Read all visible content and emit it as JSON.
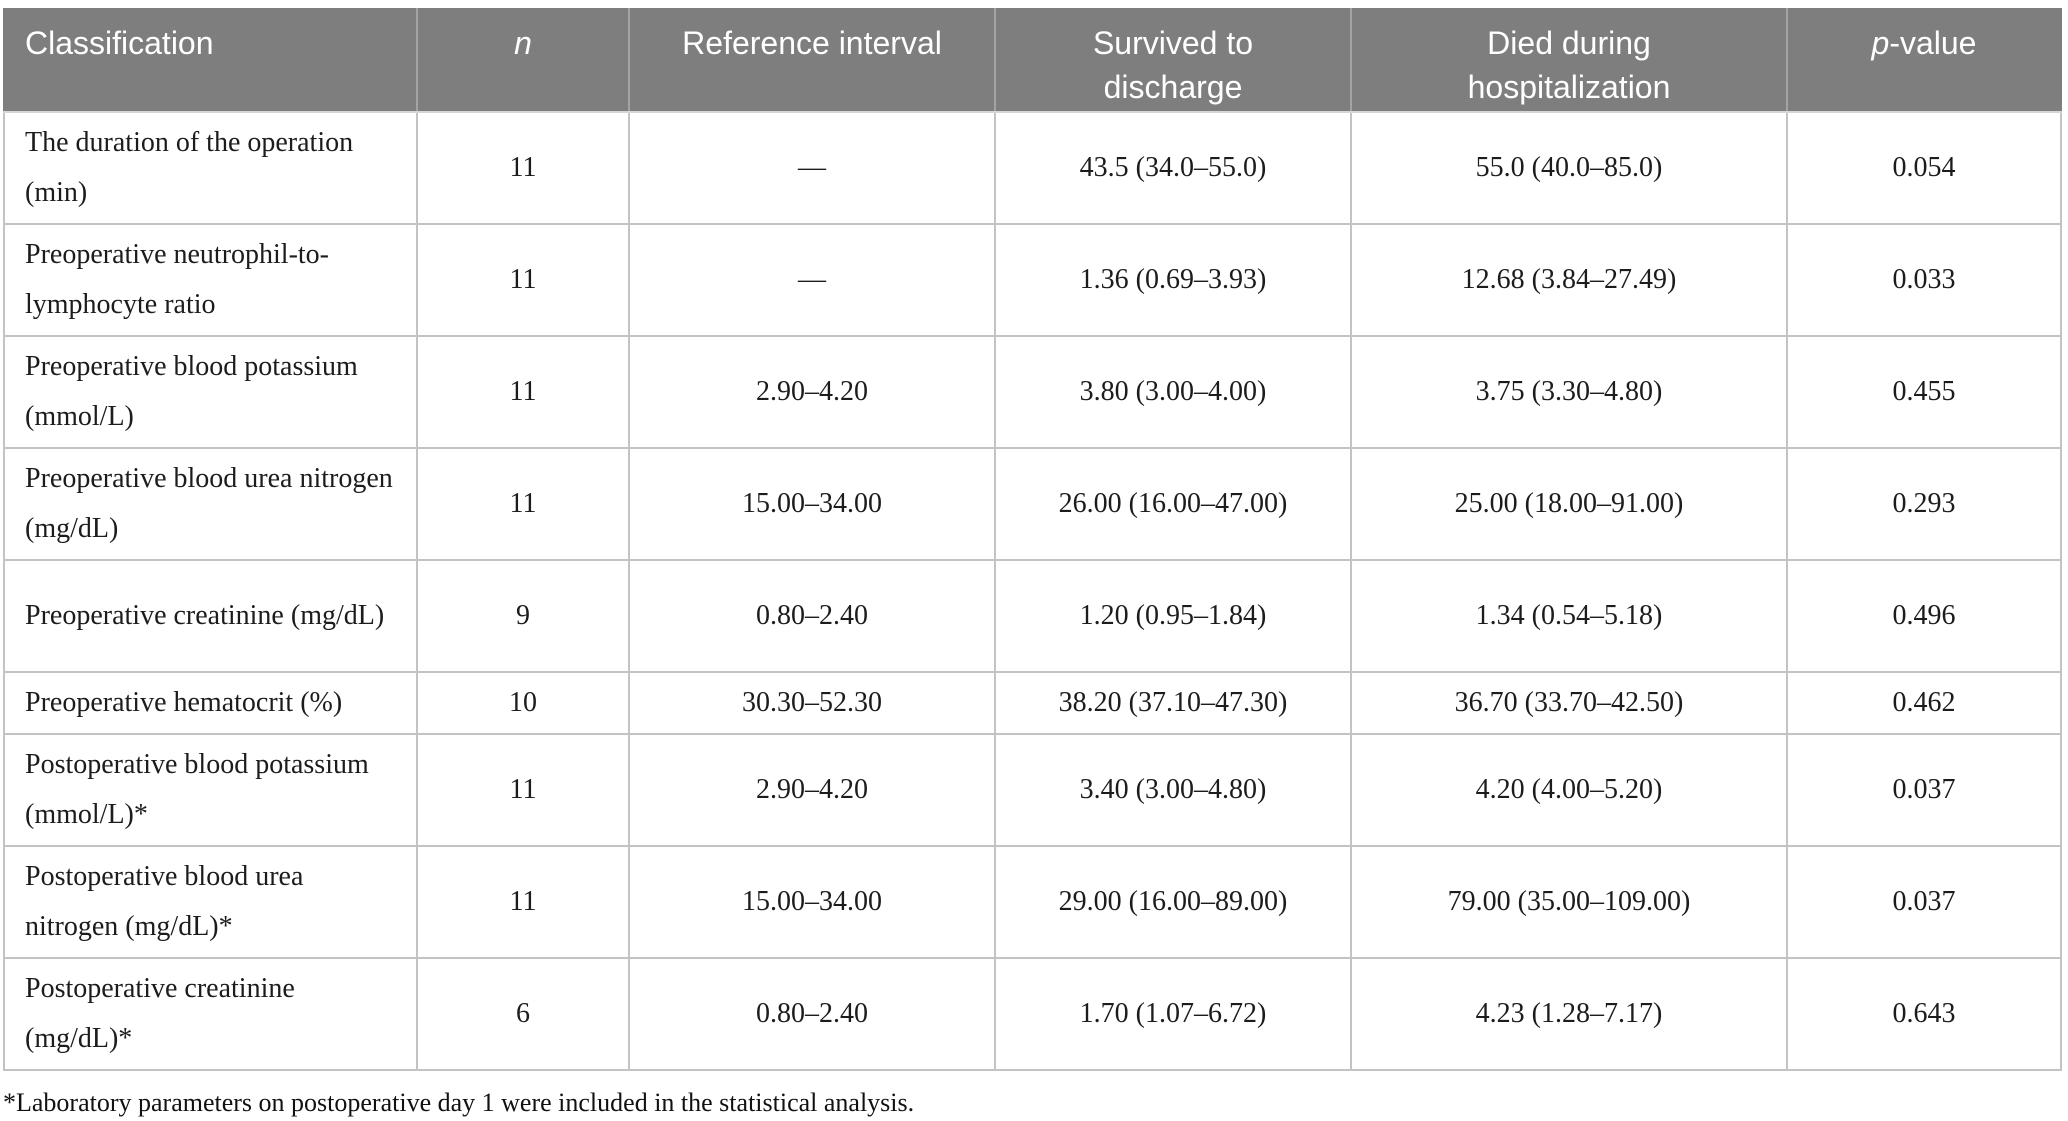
{
  "table": {
    "columns": [
      {
        "id": "classification",
        "label": "Classification",
        "italic_chars": 0
      },
      {
        "id": "n",
        "label": "n",
        "italic_chars": 1
      },
      {
        "id": "reference-interval",
        "label": "Reference interval",
        "italic_chars": 0
      },
      {
        "id": "survived-to-discharge",
        "label": "Survived to\ndischarge",
        "italic_chars": 0
      },
      {
        "id": "died-during-hospitalization",
        "label": "Died during\nhospitalization",
        "italic_chars": 0
      },
      {
        "id": "p-value",
        "label": "p-value",
        "italic_chars": 1
      }
    ],
    "rows": [
      [
        "The duration of the operation (min)",
        "11",
        "—",
        "43.5 (34.0–55.0)",
        "55.0 (40.0–85.0)",
        "0.054"
      ],
      [
        "Preoperative neutrophil-to-lymphocyte ratio",
        "11",
        "—",
        "1.36 (0.69–3.93)",
        "12.68 (3.84–27.49)",
        "0.033"
      ],
      [
        "Preoperative blood potassium (mmol/L)",
        "11",
        "2.90–4.20",
        "3.80 (3.00–4.00)",
        "3.75 (3.30–4.80)",
        "0.455"
      ],
      [
        "Preoperative blood urea nitrogen (mg/dL)",
        "11",
        "15.00–34.00",
        "26.00 (16.00–47.00)",
        "25.00 (18.00–91.00)",
        "0.293"
      ],
      [
        "Preoperative creatinine (mg/dL)",
        "9",
        "0.80–2.40",
        "1.20 (0.95–1.84)",
        "1.34 (0.54–5.18)",
        "0.496"
      ],
      [
        "Preoperative hematocrit (%)",
        "10",
        "30.30–52.30",
        "38.20 (37.10–47.30)",
        "36.70 (33.70–42.50)",
        "0.462"
      ],
      [
        "Postoperative blood potassium (mmol/L)*",
        "11",
        "2.90–4.20",
        "3.40 (3.00–4.80)",
        "4.20 (4.00–5.20)",
        "0.037"
      ],
      [
        "Postoperative blood urea nitrogen (mg/dL)*",
        "11",
        "15.00–34.00",
        "29.00 (16.00–89.00)",
        "79.00 (35.00–109.00)",
        "0.037"
      ],
      [
        "Postoperative creatinine (mg/dL)*",
        "6",
        "0.80–2.40",
        "1.70 (1.07–6.72)",
        "4.23 (1.28–7.17)",
        "0.643"
      ]
    ],
    "footnote": "*Laboratory parameters on postoperative day 1 were included in the statistical analysis."
  },
  "colors": {
    "header_bg": "#7e7e7e",
    "header_text": "#ffffff",
    "header_divider": "#a3a3a3",
    "body_border": "#c3c3c3",
    "body_text": "#1c1c1c",
    "page_bg": "#ffffff"
  }
}
